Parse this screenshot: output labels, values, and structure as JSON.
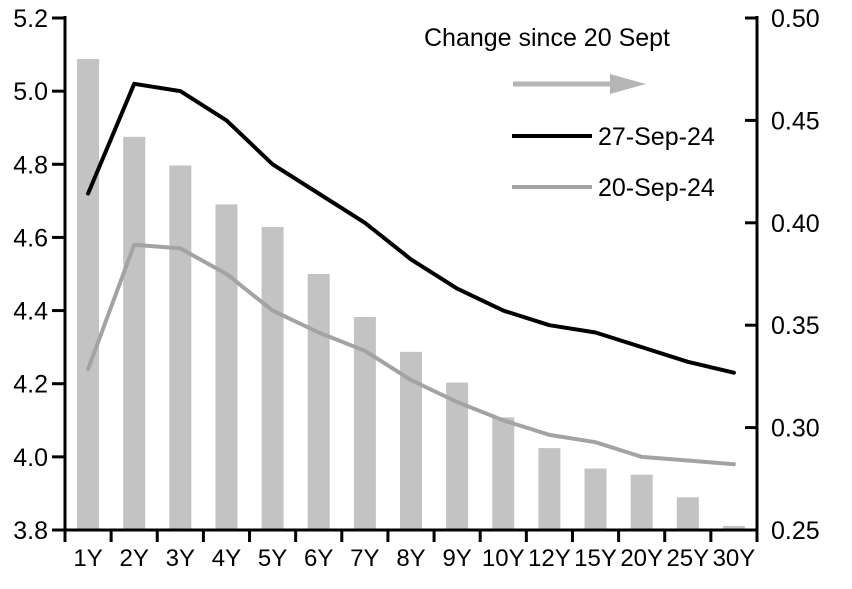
{
  "chart_data": {
    "type": "combo",
    "categories": [
      "1Y",
      "2Y",
      "3Y",
      "4Y",
      "5Y",
      "6Y",
      "7Y",
      "8Y",
      "9Y",
      "10Y",
      "12Y",
      "15Y",
      "20Y",
      "25Y",
      "30Y"
    ],
    "series": [
      {
        "name": "Change since 20 Sept",
        "type": "bar",
        "axis": "right",
        "color": "#c3c3c3",
        "values": [
          0.48,
          0.442,
          0.428,
          0.409,
          0.398,
          0.375,
          0.354,
          0.337,
          0.322,
          0.305,
          0.29,
          0.28,
          0.277,
          0.266,
          0.252
        ]
      },
      {
        "name": "27-Sep-24",
        "type": "line",
        "axis": "left",
        "color": "#000000",
        "values": [
          4.72,
          5.02,
          5.0,
          4.92,
          4.8,
          4.72,
          4.64,
          4.54,
          4.46,
          4.4,
          4.36,
          4.34,
          4.3,
          4.26,
          4.23
        ]
      },
      {
        "name": "20-Sep-24",
        "type": "line",
        "axis": "left",
        "color": "#a3a3a3",
        "values": [
          4.24,
          4.58,
          4.57,
          4.5,
          4.4,
          4.34,
          4.29,
          4.21,
          4.15,
          4.1,
          4.06,
          4.04,
          4.0,
          3.99,
          3.98
        ]
      }
    ],
    "left_axis": {
      "min": 3.8,
      "max": 5.2,
      "tick_labels": [
        "5.2",
        "5.0",
        "4.8",
        "4.6",
        "4.4",
        "4.2",
        "4.0",
        "3.8"
      ]
    },
    "right_axis": {
      "min": 0.25,
      "max": 0.5,
      "tick_labels": [
        "0.50",
        "0.45",
        "0.40",
        "0.35",
        "0.30",
        "0.25"
      ]
    },
    "legend": {
      "bar_label": "Change since 20 Sept",
      "arrow_color": "#b5b5b5",
      "line1_label": "27-Sep-24",
      "line2_label": "20-Sep-24"
    },
    "grid": "off",
    "legend_position": "top-right-inside"
  }
}
